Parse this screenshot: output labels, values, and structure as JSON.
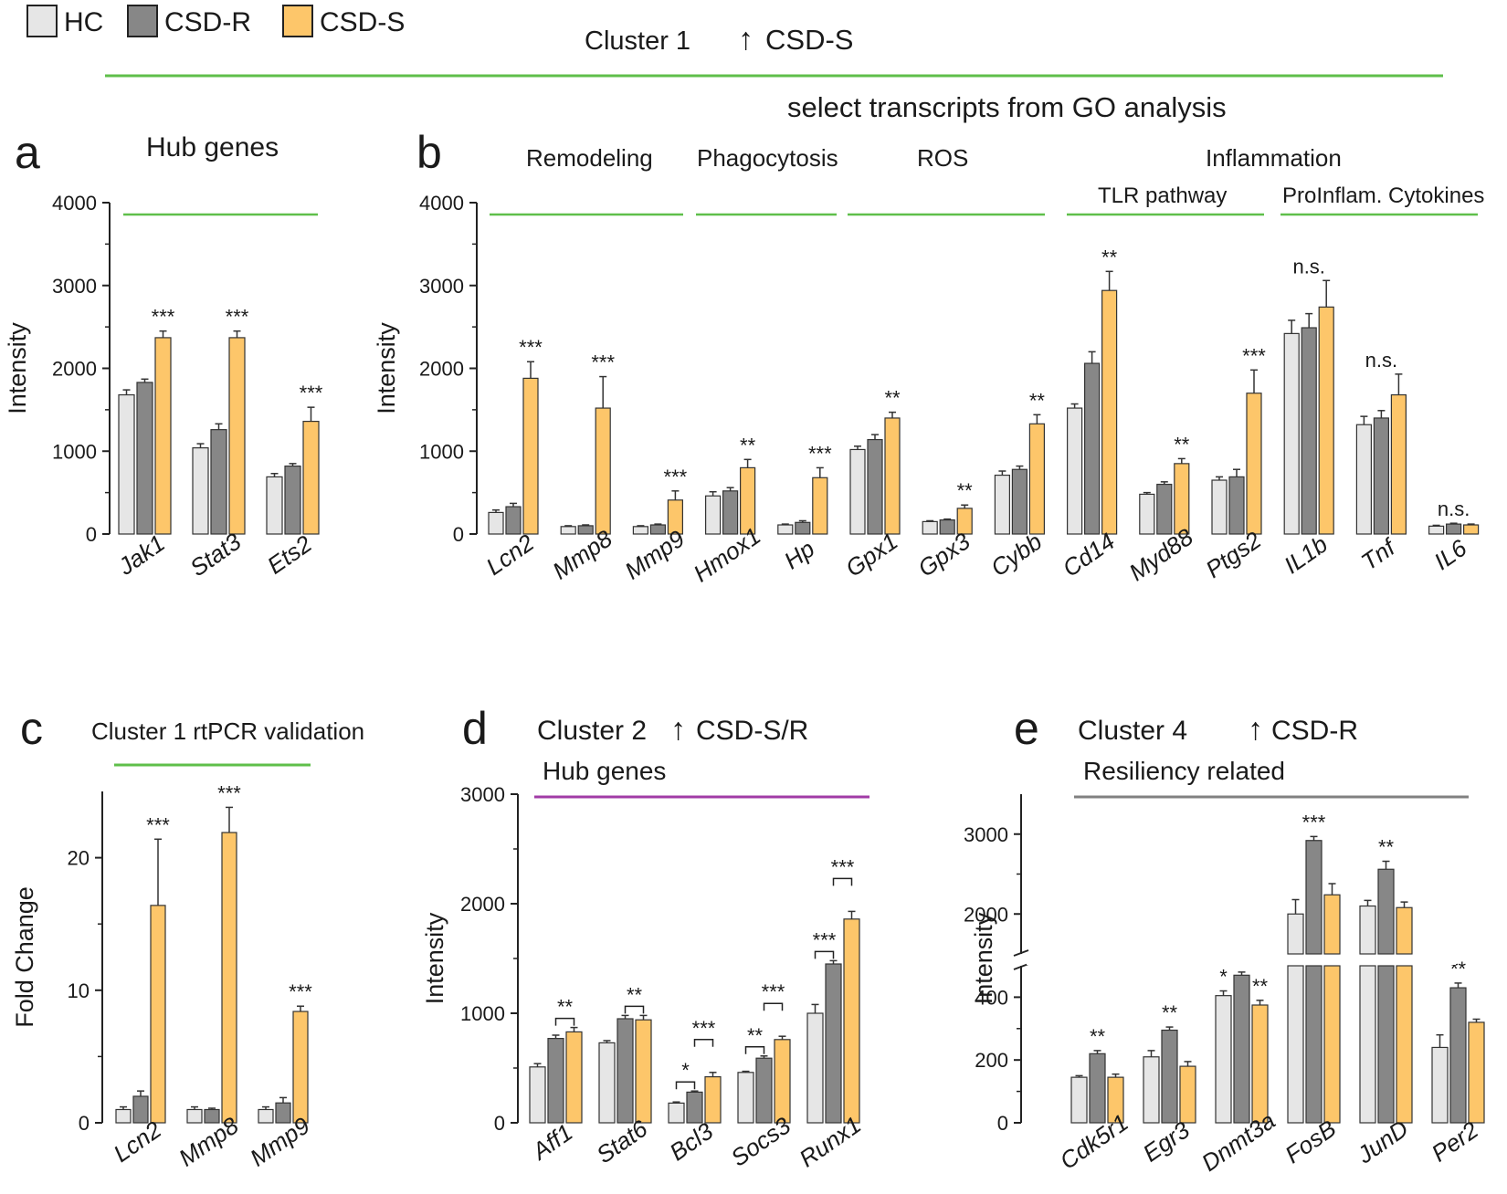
{
  "legend": [
    {
      "name": "HC",
      "color": "#e6e6e6"
    },
    {
      "name": "CSD-R",
      "color": "#878787"
    },
    {
      "name": "CSD-S",
      "color": "#fdc66a"
    }
  ],
  "header": {
    "cluster": "Cluster 1",
    "arrow": "↑",
    "direction": "CSD-S",
    "subtitle": "select transcripts from GO analysis"
  },
  "colors": {
    "cluster1_line": "#5fbf4a",
    "cluster2_line": "#a13ba6",
    "cluster4_line": "#808080"
  },
  "chart_data": [
    {
      "panel": "a",
      "type": "bar",
      "title": "Hub genes",
      "ylabel": "Intensity",
      "ylim": [
        0,
        4000
      ],
      "yticks": [
        0,
        1000,
        2000,
        3000,
        4000
      ],
      "categories": [
        "Jak1",
        "Stat3",
        "Ets2"
      ],
      "series": [
        {
          "name": "HC",
          "values": [
            1680,
            1040,
            690
          ],
          "errors": [
            60,
            50,
            40
          ]
        },
        {
          "name": "CSD-R",
          "values": [
            1830,
            1260,
            820
          ],
          "errors": [
            40,
            70,
            30
          ]
        },
        {
          "name": "CSD-S",
          "values": [
            2370,
            2370,
            1360
          ],
          "errors": [
            80,
            80,
            170
          ]
        }
      ],
      "significance": [
        "***",
        "***",
        "***"
      ]
    },
    {
      "panel": "b",
      "type": "bar",
      "ylabel": "Intensity",
      "ylim": [
        0,
        4000
      ],
      "yticks": [
        0,
        1000,
        2000,
        3000,
        4000
      ],
      "groups": [
        {
          "label": "Remodeling",
          "sublabel": ""
        },
        {
          "label": "Phagocytosis",
          "sublabel": ""
        },
        {
          "label": "ROS",
          "sublabel": ""
        },
        {
          "label": "Inflammation",
          "sublabel": "TLR pathway"
        },
        {
          "label": "",
          "sublabel": "ProInflam. Cytokines"
        }
      ],
      "categories": [
        "Lcn2",
        "Mmp8",
        "Mmp9",
        "Hmox1",
        "Hp",
        "Gpx1",
        "Gpx3",
        "Cybb",
        "Cd14",
        "Myd88",
        "Ptgs2",
        "IL1b",
        "Tnf",
        "IL6"
      ],
      "series": [
        {
          "name": "HC",
          "values": [
            260,
            90,
            90,
            460,
            110,
            1020,
            150,
            710,
            1520,
            480,
            650,
            2420,
            1320,
            95
          ],
          "errors": [
            30,
            10,
            10,
            50,
            10,
            40,
            10,
            50,
            50,
            20,
            40,
            160,
            100,
            10
          ]
        },
        {
          "name": "CSD-R",
          "values": [
            330,
            100,
            110,
            520,
            140,
            1140,
            170,
            780,
            2060,
            600,
            690,
            2490,
            1400,
            120
          ],
          "errors": [
            40,
            10,
            10,
            40,
            20,
            60,
            10,
            40,
            140,
            30,
            90,
            170,
            90,
            10
          ]
        },
        {
          "name": "CSD-S",
          "values": [
            1880,
            1520,
            410,
            800,
            680,
            1400,
            310,
            1330,
            2940,
            850,
            1700,
            2740,
            1680,
            110
          ],
          "errors": [
            200,
            380,
            110,
            100,
            120,
            70,
            40,
            110,
            230,
            60,
            280,
            320,
            250,
            10
          ]
        }
      ],
      "significance": [
        "***",
        "***",
        "***",
        "**",
        "***",
        "**",
        "**",
        "**",
        "**",
        "**",
        "***",
        "n.s.",
        "n.s.",
        "n.s."
      ]
    },
    {
      "panel": "c",
      "type": "bar",
      "title": "Cluster 1 rtPCR validation",
      "ylabel": "Fold Change",
      "ylim": [
        0,
        25
      ],
      "yticks": [
        0,
        10,
        20
      ],
      "categories": [
        "Lcn2",
        "Mmp8",
        "Mmp9"
      ],
      "series": [
        {
          "name": "HC",
          "values": [
            1.0,
            1.0,
            1.0
          ],
          "errors": [
            0.2,
            0.2,
            0.2
          ]
        },
        {
          "name": "CSD-R",
          "values": [
            2.0,
            1.0,
            1.5
          ],
          "errors": [
            0.4,
            0.1,
            0.4
          ]
        },
        {
          "name": "CSD-S",
          "values": [
            16.4,
            21.9,
            8.4
          ],
          "errors": [
            5.0,
            1.9,
            0.4
          ]
        }
      ],
      "significance": [
        "***",
        "***",
        "***"
      ]
    },
    {
      "panel": "d",
      "type": "bar",
      "title": "Cluster 2",
      "direction": "CSD-S/R",
      "subtitle": "Hub genes",
      "ylabel": "Intensity",
      "ylim": [
        0,
        3000
      ],
      "yticks": [
        0,
        1000,
        2000,
        3000
      ],
      "categories": [
        "Aff1",
        "Stat6",
        "Bcl3",
        "Socs3",
        "Runx1"
      ],
      "series": [
        {
          "name": "HC",
          "values": [
            510,
            730,
            180,
            460,
            1000
          ],
          "errors": [
            30,
            20,
            10,
            10,
            80
          ]
        },
        {
          "name": "CSD-R",
          "values": [
            770,
            950,
            280,
            590,
            1450
          ],
          "errors": [
            30,
            30,
            10,
            20,
            30
          ]
        },
        {
          "name": "CSD-S",
          "values": [
            830,
            940,
            420,
            760,
            1860
          ],
          "errors": [
            40,
            40,
            40,
            30,
            70
          ]
        }
      ],
      "significance": [
        [
          {
            "text": "**",
            "from": 1,
            "to": 2
          }
        ],
        [
          {
            "text": "**",
            "from": 1,
            "to": 2
          }
        ],
        [
          {
            "text": "*",
            "from": 0,
            "to": 1
          },
          {
            "text": "***",
            "from": 1,
            "to": 2
          }
        ],
        [
          {
            "text": "**",
            "from": 0,
            "to": 1
          },
          {
            "text": "***",
            "from": 1,
            "to": 2
          }
        ],
        [
          {
            "text": "***",
            "from": 0,
            "to": 1
          },
          {
            "text": "***",
            "from": 1,
            "to": 2
          }
        ]
      ]
    },
    {
      "panel": "e",
      "type": "bar",
      "title": "Cluster 4",
      "direction": "CSD-R",
      "subtitle": "Resiliency related",
      "ylabel": "Intensity",
      "broken_axis": true,
      "ylim_lower": [
        0,
        500
      ],
      "yticks_lower": [
        0,
        200,
        400
      ],
      "ylim_upper": [
        1500,
        3500
      ],
      "yticks_upper": [
        2000,
        3000
      ],
      "categories": [
        "Cdk5r1",
        "Egr3",
        "Dnmt3a",
        "FosB",
        "JunD",
        "Per2"
      ],
      "series": [
        {
          "name": "HC",
          "values": [
            145,
            210,
            405,
            2000,
            2100,
            240
          ],
          "errors": [
            5,
            20,
            15,
            180,
            70,
            40
          ]
        },
        {
          "name": "CSD-R",
          "values": [
            220,
            295,
            470,
            2920,
            2560,
            430
          ],
          "errors": [
            10,
            10,
            10,
            50,
            100,
            15
          ]
        },
        {
          "name": "CSD-S",
          "values": [
            145,
            180,
            375,
            2240,
            2080,
            320
          ],
          "errors": [
            10,
            15,
            15,
            140,
            70,
            10
          ]
        }
      ],
      "significance": [
        [
          {
            "text": "**",
            "over": 1
          }
        ],
        [
          {
            "text": "**",
            "over": 1
          }
        ],
        [
          {
            "text": "*",
            "over": 0
          },
          {
            "text": "**",
            "over": 2
          }
        ],
        [
          {
            "text": "***",
            "over": 1
          }
        ],
        [
          {
            "text": "**",
            "over": 1
          }
        ],
        [
          {
            "text": "**",
            "over": 1
          }
        ]
      ]
    }
  ]
}
